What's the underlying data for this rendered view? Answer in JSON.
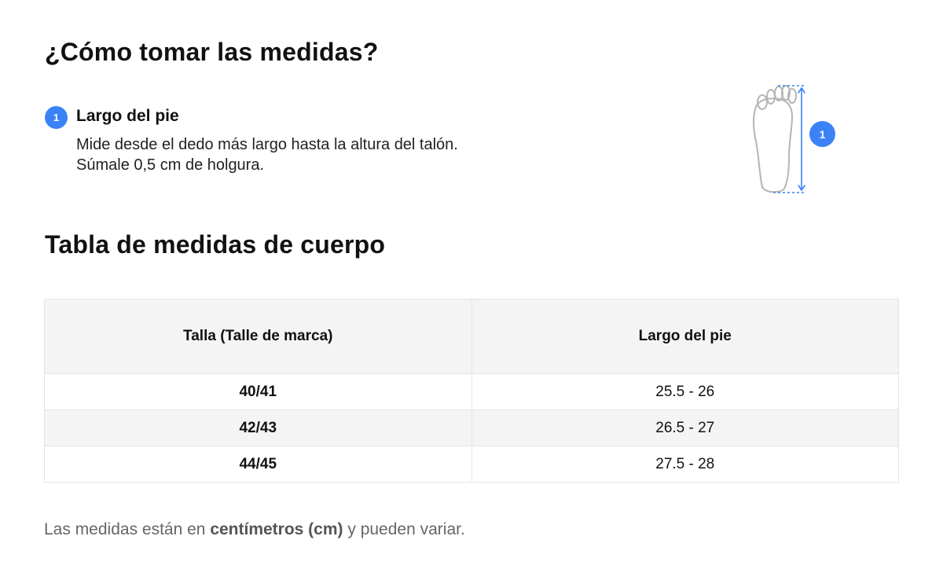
{
  "section_title": "¿Cómo tomar las medidas?",
  "step": {
    "number": "1",
    "title": "Largo del pie",
    "description": "Mide desde el dedo más largo hasta la altura del talón. Súmale 0,5 cm de holgura."
  },
  "diagram": {
    "icon": "foot-outline-icon",
    "marker": "1",
    "accent_color": "#3b82f6"
  },
  "table_title": "Tabla de medidas de cuerpo",
  "table": {
    "headers": [
      "Talla (Talle de marca)",
      "Largo del pie"
    ],
    "rows": [
      [
        "40/41",
        "25.5 - 26"
      ],
      [
        "42/43",
        "26.5 - 27"
      ],
      [
        "44/45",
        "27.5 - 28"
      ]
    ]
  },
  "note": {
    "prefix": "Las medidas están en ",
    "emphasis": "centímetros (cm)",
    "suffix": " y pueden variar."
  }
}
